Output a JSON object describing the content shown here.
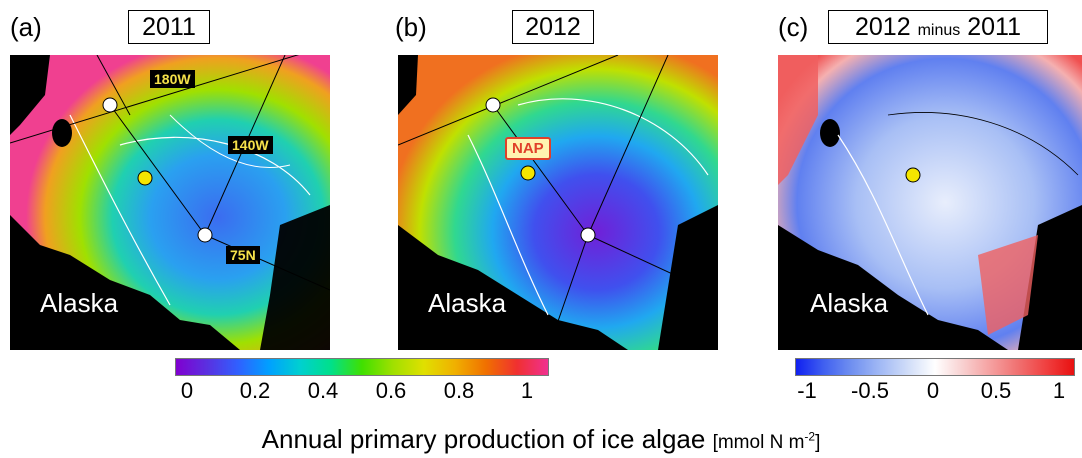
{
  "panels": [
    {
      "letter": "(a)",
      "title": "2011",
      "region": "Alaska"
    },
    {
      "letter": "(b)",
      "title": "2012",
      "region": "Alaska"
    },
    {
      "letter": "(c)",
      "title_main": "2012",
      "title_small": "minus",
      "title_end": "2011",
      "region": "Alaska"
    }
  ],
  "grid_labels": {
    "lon1": "180W",
    "lon2": "140W",
    "lat": "75N"
  },
  "station_label": "NAP",
  "colorbar_main": {
    "ticks": [
      "0",
      "0.2",
      "0.4",
      "0.6",
      "0.8",
      "1"
    ],
    "colors": [
      "#8000d0",
      "#5a30e0",
      "#3060ff",
      "#00a0ff",
      "#00d0d0",
      "#00e08a",
      "#40e000",
      "#a0e000",
      "#e0e000",
      "#f0b000",
      "#f07000",
      "#f03030",
      "#f03090"
    ]
  },
  "colorbar_diff": {
    "ticks": [
      "-1",
      "-0.5",
      "0",
      "0.5",
      "1"
    ],
    "colors": [
      "#1020f0",
      "#4060f0",
      "#7090f0",
      "#a0b8f5",
      "#cfdcf8",
      "#ffffff",
      "#f8d0d0",
      "#f5a0a0",
      "#f07070",
      "#f04040",
      "#e81010"
    ]
  },
  "caption": {
    "main": "Annual primary production of ice algae",
    "unit": "[mmol N m",
    "exp": "-2",
    "close": "]"
  }
}
